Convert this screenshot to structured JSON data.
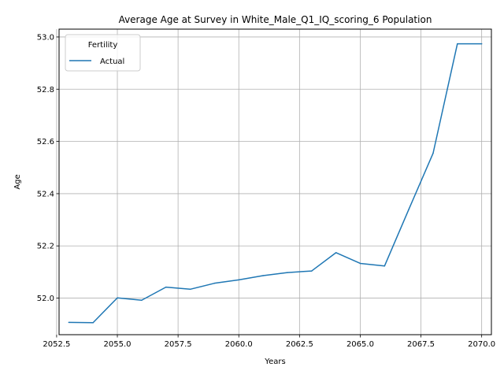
{
  "chart_data": {
    "type": "line",
    "title": "Average Age at Survey in White_Male_Q1_IQ_scoring_6 Population",
    "xlabel": "Years",
    "ylabel": "Age",
    "xlim": [
      2052.6,
      2070.4
    ],
    "ylim": [
      51.86,
      53.03
    ],
    "xticks": [
      2052.5,
      2055.0,
      2057.5,
      2060.0,
      2062.5,
      2065.0,
      2067.5,
      2070.0
    ],
    "xtick_labels": [
      "2052.5",
      "2055.0",
      "2057.5",
      "2060.0",
      "2062.5",
      "2065.0",
      "2067.5",
      "2070.0"
    ],
    "yticks": [
      52.0,
      52.2,
      52.4,
      52.6,
      52.8,
      53.0
    ],
    "ytick_labels": [
      "52.0",
      "52.2",
      "52.4",
      "52.6",
      "52.8",
      "53.0"
    ],
    "grid": true,
    "legend": {
      "title": "Fertility",
      "placement": "upper-left"
    },
    "series": [
      {
        "name": "Actual",
        "color": "#1f77b4",
        "x": [
          2053,
          2054,
          2055,
          2056,
          2057,
          2058,
          2059,
          2060,
          2061,
          2062,
          2063,
          2064,
          2065,
          2066,
          2067,
          2068,
          2069,
          2070
        ],
        "y": [
          51.907,
          51.906,
          52.001,
          51.992,
          52.042,
          52.034,
          52.057,
          52.07,
          52.086,
          52.098,
          52.104,
          52.174,
          52.133,
          52.123,
          52.34,
          52.555,
          52.974,
          52.974
        ]
      }
    ]
  }
}
